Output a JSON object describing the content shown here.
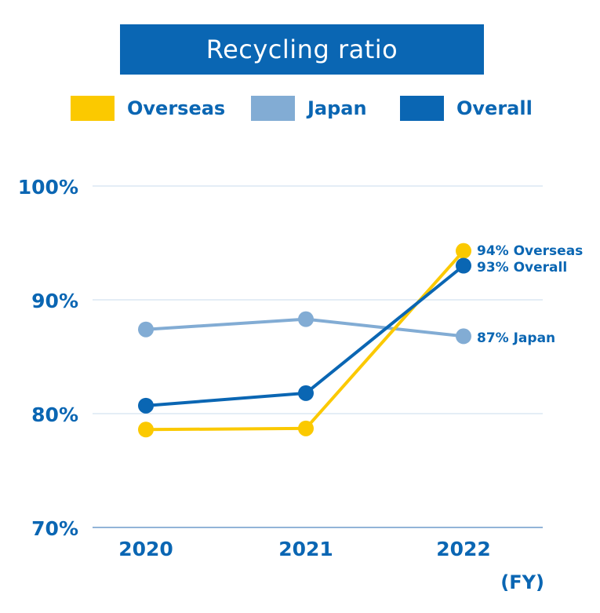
{
  "chart_data": {
    "type": "line",
    "title": "Recycling ratio",
    "x": [
      "2020",
      "2021",
      "2022"
    ],
    "xunit": "(FY)",
    "ylim": [
      70,
      100
    ],
    "yticks": [
      70,
      80,
      90,
      100
    ],
    "ytick_labels": [
      "70%",
      "80%",
      "90%",
      "100%"
    ],
    "grid": true,
    "legend": "top",
    "series": [
      {
        "name": "Overseas",
        "color": "#fbc900",
        "values": [
          78.6,
          78.7,
          94.3
        ],
        "end_label": "94% Overseas"
      },
      {
        "name": "Japan",
        "color": "#82acd4",
        "values": [
          87.4,
          88.3,
          86.8
        ],
        "end_label": "87% Japan"
      },
      {
        "name": "Overall",
        "color": "#0a66b3",
        "values": [
          80.7,
          81.8,
          93.0
        ],
        "end_label": "93% Overall"
      }
    ]
  }
}
